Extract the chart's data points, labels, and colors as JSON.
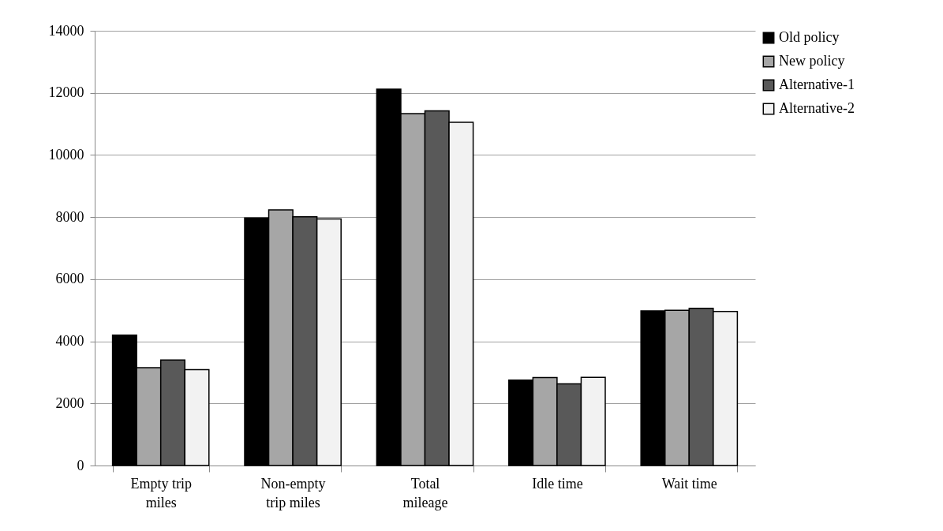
{
  "chart_data": {
    "type": "bar",
    "categories": [
      "Empty trip miles",
      "Non-empty trip miles",
      "Total mileage",
      "Idle time",
      "Wait time"
    ],
    "series": [
      {
        "name": "Old policy",
        "color": "#000000",
        "values": [
          4200,
          7970,
          12120,
          2750,
          4980
        ]
      },
      {
        "name": "New policy",
        "color": "#a6a6a6",
        "values": [
          3150,
          8230,
          11330,
          2830,
          5000
        ]
      },
      {
        "name": "Alternative-1",
        "color": "#595959",
        "values": [
          3400,
          8010,
          11420,
          2630,
          5060
        ]
      },
      {
        "name": "Alternative-2",
        "color": "#f2f2f2",
        "values": [
          3090,
          7940,
          11050,
          2840,
          4960
        ]
      }
    ],
    "ylim": [
      0,
      14000
    ],
    "yticks": [
      0,
      2000,
      4000,
      6000,
      8000,
      10000,
      12000,
      14000
    ],
    "grid": "y",
    "legend": "right"
  }
}
